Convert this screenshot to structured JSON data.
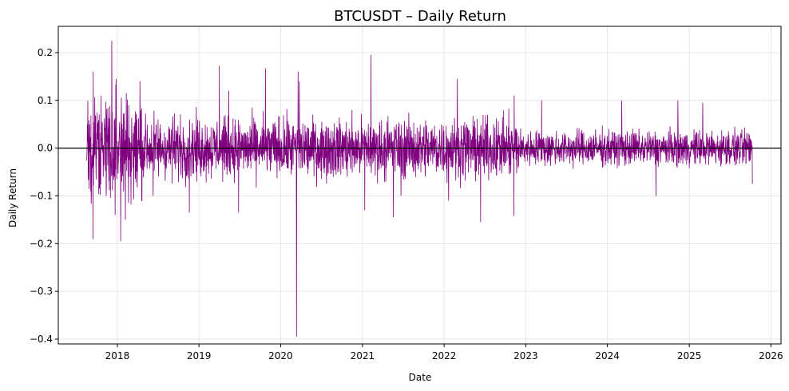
{
  "chart_data": {
    "type": "line",
    "title": "BTCUSDT – Daily Return",
    "xlabel": "Date",
    "ylabel": "Daily Return",
    "x_range": [
      "2017-08-17",
      "2025-10-10"
    ],
    "xlim": [
      "2017-04-12",
      "2026-02-15"
    ],
    "ylim": [
      -0.41,
      0.255
    ],
    "x_ticks": [
      "2018",
      "2019",
      "2020",
      "2021",
      "2022",
      "2023",
      "2024",
      "2025",
      "2026"
    ],
    "y_ticks": [
      "0.2",
      "0.1",
      "0.0",
      "−0.1",
      "−0.2",
      "−0.3",
      "−0.4"
    ],
    "y_tick_values": [
      0.2,
      0.1,
      0.0,
      -0.1,
      -0.2,
      -0.3,
      -0.4
    ],
    "grid": true,
    "zero_line": 0.0,
    "colors": {
      "series": "#800080",
      "zero_line": "#000000",
      "grid": "#e6e6e6"
    },
    "series": [
      {
        "values_note": "",
        "points": [
          [
            "2017-08-20",
            0.05
          ],
          [
            "2017-09-04",
            -0.09
          ],
          [
            "2017-09-14",
            -0.19
          ],
          [
            "2017-09-15",
            0.16
          ],
          [
            "2017-10-20",
            0.11
          ],
          [
            "2017-11-12",
            -0.1
          ],
          [
            "2017-12-07",
            0.225
          ],
          [
            "2017-12-22",
            -0.14
          ],
          [
            "2017-12-27",
            0.145
          ],
          [
            "2018-01-16",
            -0.195
          ],
          [
            "2018-02-06",
            -0.15
          ],
          [
            "2018-02-10",
            0.115
          ],
          [
            "2018-04-12",
            0.14
          ],
          [
            "2018-06-10",
            -0.1
          ],
          [
            "2018-11-19",
            -0.135
          ],
          [
            "2019-04-02",
            0.172
          ],
          [
            "2019-05-14",
            0.12
          ],
          [
            "2019-06-27",
            -0.135
          ],
          [
            "2019-10-25",
            0.167
          ],
          [
            "2020-03-12",
            -0.395
          ],
          [
            "2020-03-19",
            0.16
          ],
          [
            "2020-03-25",
            0.14
          ],
          [
            "2021-01-11",
            -0.13
          ],
          [
            "2021-02-08",
            0.195
          ],
          [
            "2021-05-19",
            -0.145
          ],
          [
            "2021-06-22",
            -0.1
          ],
          [
            "2022-01-21",
            -0.11
          ],
          [
            "2022-03-01",
            0.145
          ],
          [
            "2022-06-13",
            -0.155
          ],
          [
            "2022-11-09",
            -0.142
          ],
          [
            "2022-11-10",
            0.11
          ],
          [
            "2023-03-13",
            0.1
          ],
          [
            "2024-03-05",
            0.1
          ],
          [
            "2024-08-05",
            -0.1
          ],
          [
            "2024-11-11",
            0.1
          ],
          [
            "2025-03-02",
            0.095
          ],
          [
            "2025-10-10",
            -0.075
          ]
        ]
      }
    ]
  }
}
